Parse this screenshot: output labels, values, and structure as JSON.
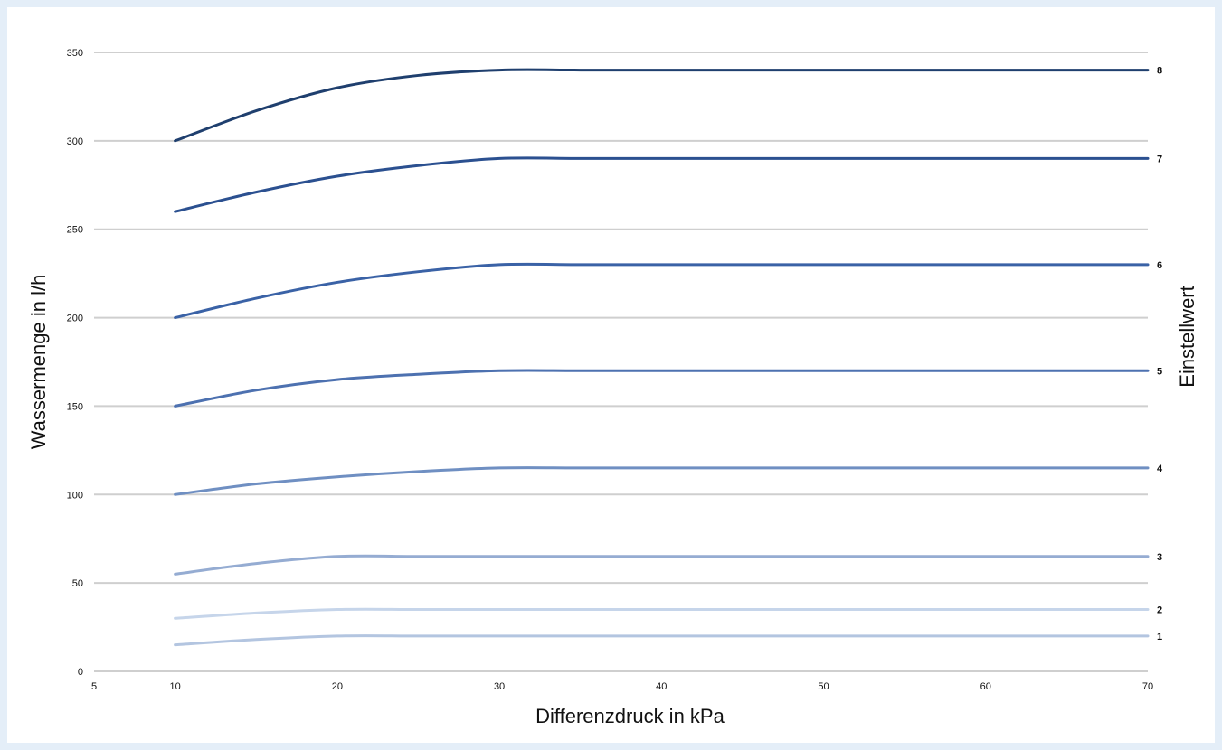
{
  "chart_data": {
    "type": "line",
    "xlabel": "Differenzdruck in kPa",
    "ylabel": "Wassermenge in l/h",
    "y2label": "Einstellwert",
    "xlim": [
      5,
      70
    ],
    "ylim": [
      0,
      350
    ],
    "xticks": [
      5,
      10,
      20,
      30,
      40,
      50,
      60,
      70
    ],
    "yticks": [
      0,
      50,
      100,
      150,
      200,
      250,
      300,
      350
    ],
    "grid": "horizontal",
    "x": [
      10,
      15,
      20,
      25,
      30,
      35,
      40,
      50,
      60,
      70
    ],
    "series": [
      {
        "name": "1",
        "color": "#b3c5e0",
        "values": [
          15,
          18,
          20,
          20,
          20,
          20,
          20,
          20,
          20,
          20
        ]
      },
      {
        "name": "2",
        "color": "#c6d5ea",
        "values": [
          30,
          33,
          35,
          35,
          35,
          35,
          35,
          35,
          35,
          35
        ]
      },
      {
        "name": "3",
        "color": "#95acd2",
        "values": [
          55,
          61,
          65,
          65,
          65,
          65,
          65,
          65,
          65,
          65
        ]
      },
      {
        "name": "4",
        "color": "#6f8fc2",
        "values": [
          100,
          106,
          110,
          113,
          115,
          115,
          115,
          115,
          115,
          115
        ]
      },
      {
        "name": "5",
        "color": "#4d71b0",
        "values": [
          150,
          159,
          165,
          168,
          170,
          170,
          170,
          170,
          170,
          170
        ]
      },
      {
        "name": "6",
        "color": "#3a62a6",
        "values": [
          200,
          211,
          220,
          226,
          230,
          230,
          230,
          230,
          230,
          230
        ]
      },
      {
        "name": "7",
        "color": "#2b5090",
        "values": [
          260,
          271,
          280,
          286,
          290,
          290,
          290,
          290,
          290,
          290
        ]
      },
      {
        "name": "8",
        "color": "#1f3f6e",
        "values": [
          300,
          317,
          330,
          337,
          340,
          340,
          340,
          340,
          340,
          340
        ]
      }
    ]
  }
}
